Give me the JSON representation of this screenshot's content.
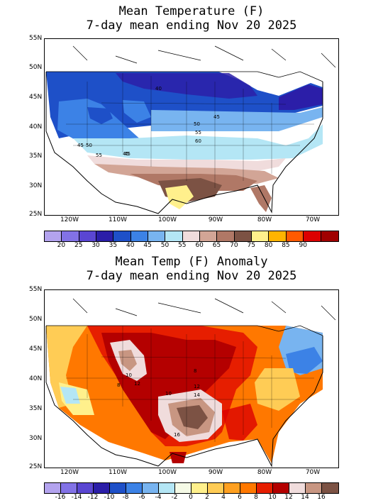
{
  "top_panel": {
    "title_line1": "Mean Temperature (F)",
    "title_line2": "7-day mean ending Nov 20 2025",
    "lat_labels": [
      "55N",
      "50N",
      "45N",
      "40N",
      "35N",
      "30N",
      "25N"
    ],
    "lon_labels": [
      "120W",
      "110W",
      "100W",
      "90W",
      "80W",
      "70W"
    ],
    "contour_labels": [
      "40",
      "45",
      "45",
      "50",
      "55",
      "60",
      "45",
      "50",
      "55",
      "45"
    ],
    "colorbar": {
      "colors": [
        "#b3a3ee",
        "#8272e6",
        "#5a46d2",
        "#2b1ea8",
        "#1e50c8",
        "#3c82e6",
        "#78b4f0",
        "#b4e6f5",
        "#f0dcdc",
        "#d2a596",
        "#b07866",
        "#7c5244",
        "#fff08c",
        "#ffb400",
        "#ff5a00",
        "#dc0000",
        "#a00000"
      ],
      "labels": [
        "20",
        "25",
        "30",
        "35",
        "40",
        "45",
        "50",
        "55",
        "60",
        "65",
        "70",
        "75",
        "80",
        "85",
        "90"
      ]
    }
  },
  "bottom_panel": {
    "title_line1": "Mean Temp (F) Anomaly",
    "title_line2": "7-day mean ending Nov 20 2025",
    "lat_labels": [
      "55N",
      "50N",
      "45N",
      "40N",
      "35N",
      "30N",
      "25N"
    ],
    "lon_labels": [
      "120W",
      "110W",
      "100W",
      "90W",
      "80W",
      "70W"
    ],
    "contour_labels": [
      "10",
      "8",
      "12",
      "8",
      "10",
      "12",
      "14",
      "16"
    ],
    "colorbar": {
      "colors": [
        "#b3a3ee",
        "#8272e6",
        "#5a46d2",
        "#2b1ea8",
        "#1e50c8",
        "#3c82e6",
        "#78b4f0",
        "#b4e6f5",
        "#f5fae6",
        "#fff08c",
        "#ffcc55",
        "#ffa020",
        "#ff7800",
        "#e61e00",
        "#b40000",
        "#f0dcdc",
        "#c89682",
        "#7c5244"
      ],
      "labels": [
        "-16",
        "-14",
        "-12",
        "-10",
        "-8",
        "-6",
        "-4",
        "-2",
        "0",
        "2",
        "4",
        "6",
        "8",
        "10",
        "12",
        "14",
        "16"
      ]
    }
  }
}
